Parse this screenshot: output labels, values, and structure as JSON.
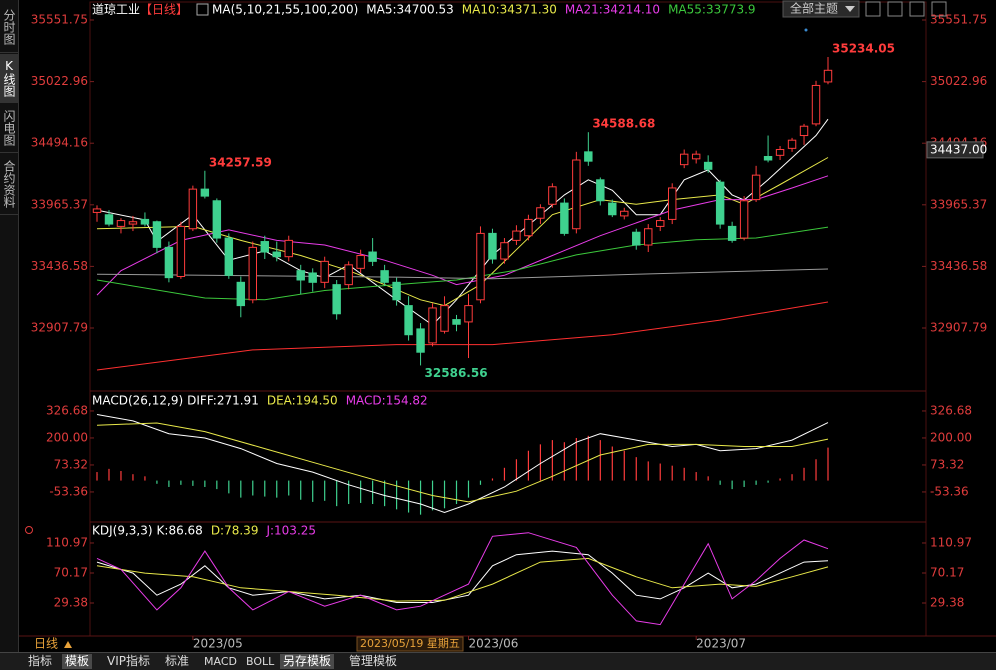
{
  "sidebar_tabs": [
    "分时图",
    "K线图",
    "闪电图",
    "合约资料"
  ],
  "theme_button": "全部主题",
  "period_label": "日线",
  "cursor_label": "2023/05/19 星期五",
  "bottom_tabs": [
    "指标",
    "模板",
    "VIP指标",
    "标准",
    "MACD",
    "BOLL",
    "另存模板",
    "管理模板"
  ],
  "chart_data": [
    {
      "type": "candlestick",
      "title": "道琼工业",
      "period": "【日线】",
      "indicator": "MA(5,10,21,55,100,200)",
      "up_color": "#ff3c3c",
      "down_color": "#3fd18f",
      "categories": [
        null,
        null,
        null,
        null,
        null,
        null,
        null,
        null,
        "2023/05",
        null,
        null,
        null,
        null,
        null,
        null,
        null,
        null,
        null,
        null,
        null,
        null,
        null,
        null,
        null,
        null,
        null,
        null,
        null,
        null,
        null,
        null,
        "2023/06",
        null,
        null,
        null,
        null,
        null,
        null,
        null,
        null,
        null,
        null,
        null,
        null,
        null,
        null,
        null,
        null,
        null,
        null,
        "2023/07",
        null,
        null,
        null,
        null,
        null,
        null,
        null,
        null,
        null,
        null,
        null
      ],
      "open": [
        33900,
        33880,
        33780,
        33800,
        33840,
        33820,
        33600,
        33350,
        33760,
        34100,
        34000,
        33680,
        33300,
        33150,
        33650,
        33560,
        33520,
        33400,
        33380,
        33300,
        33280,
        33280,
        33420,
        33560,
        33400,
        33300,
        33100,
        32900,
        32780,
        32880,
        32980,
        32960,
        33150,
        33720,
        33500,
        33660,
        33700,
        33850,
        33970,
        33980,
        33760,
        34420,
        34180,
        33980,
        33870,
        33730,
        33620,
        33780,
        33840,
        34310,
        34360,
        34330,
        34160,
        33780,
        33680,
        34010,
        34380,
        34390,
        34450,
        34560,
        34660,
        35020
      ],
      "high": [
        33960,
        33920,
        33850,
        33870,
        33900,
        33830,
        33650,
        33820,
        34130,
        34257.59,
        34020,
        33720,
        33350,
        33650,
        33700,
        33650,
        33700,
        33450,
        33420,
        33520,
        33320,
        33480,
        33580,
        33680,
        33450,
        33340,
        33180,
        32950,
        33120,
        33180,
        33020,
        33200,
        33780,
        33760,
        33680,
        33790,
        33880,
        33970,
        34150,
        34020,
        34420,
        34588.68,
        34200,
        34010,
        33940,
        33760,
        33800,
        33860,
        34150,
        34440,
        34430,
        34390,
        34180,
        33820,
        34040,
        34300,
        34560,
        34470,
        34540,
        34660,
        35030,
        35234.05
      ],
      "low": [
        33820,
        33780,
        33720,
        33740,
        33780,
        33550,
        33300,
        33330,
        33740,
        34020,
        33640,
        33330,
        33000,
        33120,
        33500,
        33480,
        33480,
        33200,
        33220,
        33250,
        32980,
        33240,
        33380,
        33440,
        33270,
        33100,
        32800,
        32586.56,
        32750,
        32860,
        32880,
        32650,
        33120,
        33460,
        33460,
        33620,
        33660,
        33800,
        33940,
        33700,
        33720,
        34300,
        33960,
        33860,
        33840,
        33580,
        33560,
        33740,
        33800,
        34280,
        34320,
        34240,
        33760,
        33640,
        33660,
        33990,
        34330,
        34350,
        34420,
        34480,
        34640,
        35000
      ],
      "close": [
        33930,
        33800,
        33830,
        33820,
        33800,
        33600,
        33340,
        33780,
        34100,
        34040,
        33680,
        33360,
        33100,
        33600,
        33560,
        33520,
        33660,
        33320,
        33300,
        33480,
        33030,
        33450,
        33530,
        33480,
        33300,
        33150,
        32850,
        32700,
        33080,
        33100,
        32940,
        33100,
        33720,
        33500,
        33640,
        33740,
        33840,
        33940,
        34120,
        33720,
        34350,
        34340,
        34000,
        33880,
        33910,
        33620,
        33760,
        33830,
        34110,
        34400,
        34400,
        34270,
        33800,
        33660,
        34000,
        34220,
        34350,
        34440,
        34520,
        34640,
        34990,
        35120
      ],
      "annotations": [
        null,
        null,
        null,
        null,
        null,
        null,
        null,
        null,
        null,
        34257.59,
        null,
        null,
        null,
        null,
        null,
        null,
        null,
        null,
        null,
        null,
        null,
        null,
        null,
        null,
        null,
        null,
        null,
        32586.56,
        null,
        null,
        null,
        null,
        null,
        null,
        null,
        null,
        null,
        null,
        null,
        null,
        null,
        34588.68,
        null,
        null,
        null,
        null,
        null,
        null,
        null,
        null,
        null,
        null,
        null,
        null,
        null,
        null,
        null,
        null,
        null,
        null,
        null,
        35234.05
      ],
      "series": [
        {
          "name": "MA5:34700.53",
          "color": "#ffffff",
          "x": [
            0,
            4,
            5,
            8,
            11,
            14,
            17,
            19,
            21,
            25,
            28,
            30,
            33,
            36,
            39,
            41,
            43,
            45,
            47,
            49,
            51,
            53,
            54,
            56,
            58,
            60,
            61
          ],
          "values": [
            33920,
            33835,
            33650,
            33880,
            33490,
            33570,
            33400,
            33340,
            33450,
            33150,
            32934,
            33150,
            33535,
            33790,
            34050,
            34180,
            34090,
            33880,
            33880,
            34180,
            34265,
            34050,
            34007,
            34180,
            34370,
            34560,
            34700.53
          ]
        },
        {
          "name": "MA10:34371.30",
          "color": "#e8e84a",
          "x": [
            0,
            8,
            12,
            17,
            21,
            24,
            27,
            29,
            32,
            35,
            38,
            42,
            45,
            48,
            52,
            54,
            57,
            61
          ],
          "values": [
            33760,
            33780,
            33660,
            33530,
            33400,
            33280,
            33150,
            33100,
            33280,
            33580,
            33880,
            34010,
            33970,
            34010,
            34050,
            33970,
            34140,
            34371.3
          ]
        },
        {
          "name": "MA21:34214.10",
          "color": "#e83ce8",
          "x": [
            0,
            2,
            7,
            11,
            15,
            19,
            24,
            28,
            30,
            34,
            38,
            42,
            45,
            48,
            52,
            55,
            58,
            61
          ],
          "values": [
            33190,
            33400,
            33660,
            33750,
            33660,
            33620,
            33490,
            33360,
            33280,
            33360,
            33530,
            33700,
            33810,
            33920,
            34010,
            34010,
            34110,
            34214.1
          ]
        },
        {
          "name": "MA55:33773.9",
          "color": "#3cc83c",
          "x": [
            0,
            9,
            14,
            19,
            25,
            30,
            35,
            40,
            45,
            50,
            55,
            61
          ],
          "values": [
            33320,
            33165,
            33150,
            33230,
            33280,
            33320,
            33405,
            33535,
            33620,
            33665,
            33680,
            33773.9
          ]
        },
        {
          "color": "#9a9a9a",
          "x": [
            0,
            25,
            33,
            45,
            61
          ],
          "values": [
            33370,
            33345,
            33330,
            33370,
            33414
          ]
        },
        {
          "color": "#ff3030",
          "x": [
            0,
            13,
            25,
            33,
            43,
            52,
            61
          ],
          "values": [
            32547,
            32720,
            32765,
            32765,
            32850,
            32976,
            33131
          ]
        }
      ],
      "price_marker": {
        "value": 34437,
        "label": "34437.00"
      },
      "ylim": [
        32375.6,
        35654.8
      ],
      "yticks": [
        35551.75,
        35022.96,
        34494.16,
        33965.37,
        33436.58,
        32907.79
      ]
    },
    {
      "type": "macd",
      "title": "MACD(26,12,9)",
      "series": [
        {
          "name": "DIFF:271.91",
          "color": "#ffffff",
          "x": [
            0,
            3,
            6,
            9,
            12,
            15,
            18,
            21,
            24,
            27,
            29,
            31,
            34,
            37,
            40,
            42,
            45,
            48,
            50,
            52,
            55,
            58,
            61
          ],
          "values": [
            310,
            280,
            220,
            200,
            150,
            80,
            40,
            -20,
            -70,
            -110,
            -150,
            -110,
            -30,
            80,
            180,
            220,
            190,
            160,
            170,
            140,
            150,
            190,
            271.91
          ]
        },
        {
          "name": "DEA:194.50",
          "color": "#e8e84a",
          "x": [
            0,
            5,
            9,
            14,
            19,
            24,
            28,
            31,
            35,
            38,
            42,
            46,
            50,
            54,
            58,
            61
          ],
          "values": [
            260,
            270,
            230,
            150,
            70,
            -10,
            -70,
            -100,
            -50,
            20,
            120,
            170,
            170,
            160,
            160,
            194.5
          ]
        }
      ],
      "histogram": {
        "name": "MACD:154.82",
        "color": "#e83ce8",
        "up_color": "#ff3c3c",
        "down_color": "#3fd18f",
        "values": [
          40,
          55,
          45,
          30,
          20,
          -15,
          -30,
          -20,
          -25,
          -30,
          -40,
          -60,
          -80,
          -70,
          -75,
          -80,
          -70,
          -90,
          -100,
          -95,
          -120,
          -110,
          -105,
          -110,
          -120,
          -135,
          -150,
          -160,
          -140,
          -130,
          -110,
          -80,
          -20,
          10,
          60,
          100,
          140,
          170,
          190,
          180,
          200,
          210,
          190,
          160,
          140,
          110,
          90,
          80,
          70,
          60,
          40,
          20,
          -20,
          -40,
          -30,
          -20,
          -10,
          10,
          30,
          60,
          100,
          154.82
        ]
      },
      "ylim": [
        -185,
        411
      ],
      "yticks": [
        326.68,
        {
          "value": 200,
          "label": "200.00"
        },
        73.32,
        -53.36
      ]
    },
    {
      "type": "line",
      "title": "KDJ(9,3,3)",
      "series": [
        {
          "name": "K:86.68",
          "color": "#ffffff",
          "x": [
            0,
            3,
            5,
            7,
            9,
            11,
            13,
            16,
            19,
            22,
            25,
            28,
            31,
            33,
            35,
            38,
            41,
            43,
            45,
            47,
            49,
            51,
            53,
            55,
            57,
            59,
            61
          ],
          "values": [
            85,
            70,
            40,
            55,
            80,
            50,
            40,
            45,
            35,
            40,
            30,
            30,
            40,
            80,
            95,
            100,
            95,
            70,
            40,
            35,
            50,
            70,
            50,
            55,
            70,
            85,
            86.68
          ]
        },
        {
          "name": "D:78.39",
          "color": "#e8e84a",
          "x": [
            0,
            4,
            8,
            12,
            16,
            20,
            25,
            29,
            33,
            37,
            41,
            45,
            48,
            52,
            55,
            58,
            61
          ],
          "values": [
            80,
            70,
            65,
            50,
            45,
            40,
            32,
            33,
            55,
            85,
            90,
            65,
            50,
            55,
            52,
            65,
            78.39
          ]
        },
        {
          "name": "J:103.25",
          "color": "#e83ce8",
          "x": [
            0,
            2,
            5,
            7,
            9,
            11,
            13,
            16,
            19,
            22,
            25,
            27,
            31,
            33,
            36,
            40,
            43,
            45,
            47,
            49,
            51,
            53,
            55,
            57,
            59,
            61
          ],
          "values": [
            90,
            75,
            20,
            50,
            100,
            50,
            20,
            45,
            25,
            40,
            20,
            25,
            55,
            120,
            125,
            105,
            40,
            5,
            0,
            55,
            110,
            35,
            60,
            90,
            115,
            103.25
          ]
        }
      ],
      "ylim": [
        -15.5,
        132.7
      ],
      "yticks": [
        110.97,
        70.17,
        29.38
      ]
    }
  ]
}
